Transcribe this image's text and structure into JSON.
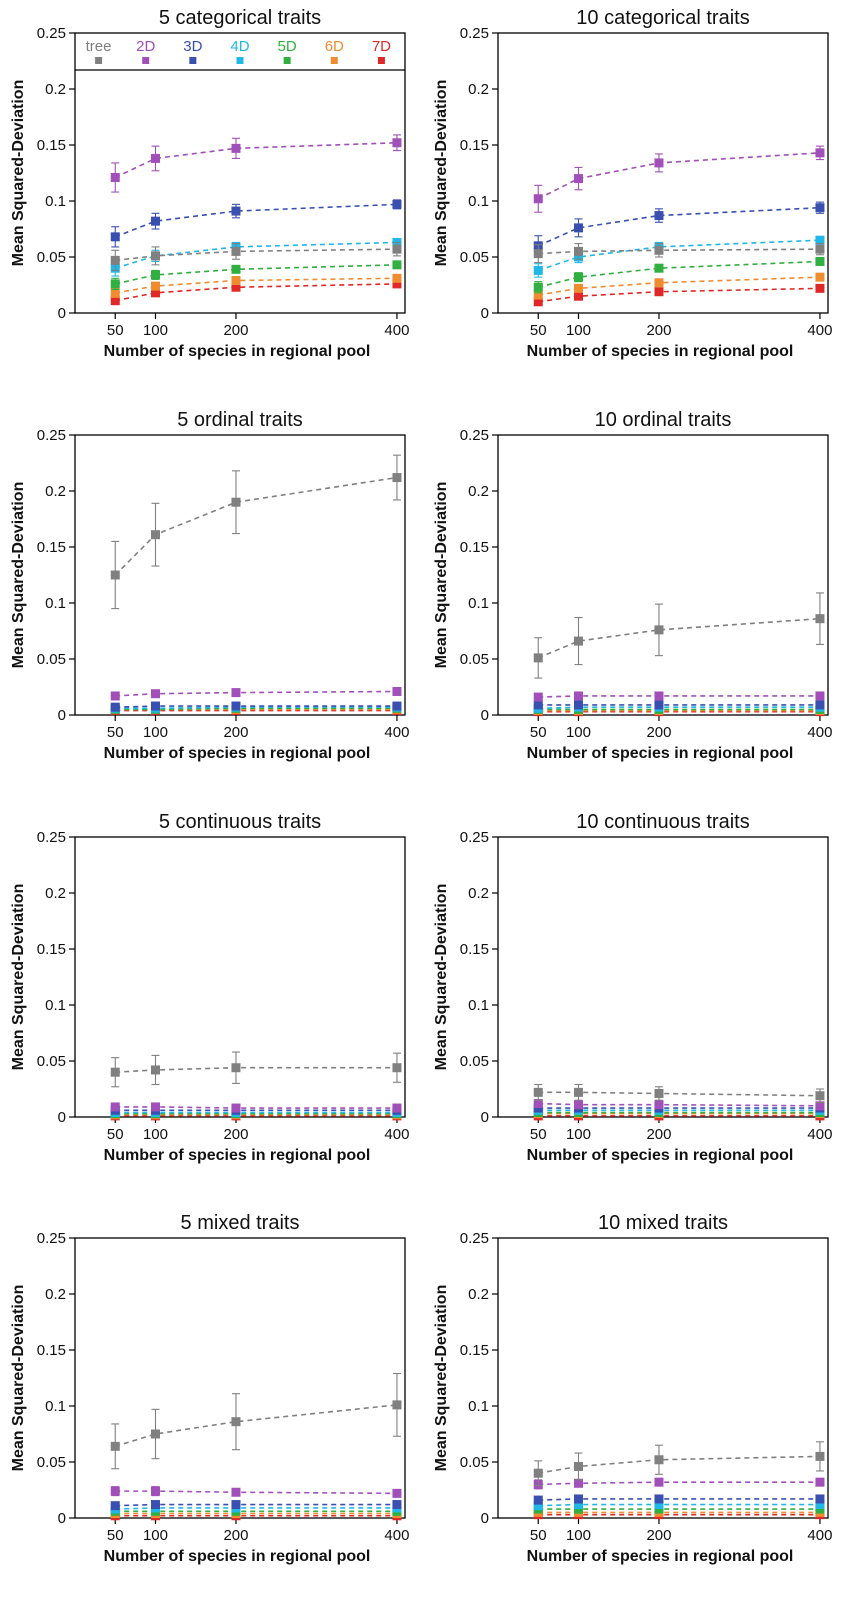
{
  "figure": {
    "legend": {
      "placement": "top, inside first panel",
      "items": [
        {
          "label": "tree",
          "color": "#808080"
        },
        {
          "label": "2D",
          "color": "#a050b8"
        },
        {
          "label": "3D",
          "color": "#3a50b0"
        },
        {
          "label": "4D",
          "color": "#20b8e8"
        },
        {
          "label": "5D",
          "color": "#30b040"
        },
        {
          "label": "6D",
          "color": "#f08c30"
        },
        {
          "label": "7D",
          "color": "#e02828"
        }
      ]
    }
  },
  "chart_data": [
    {
      "type": "line",
      "title": "5 categorical traits",
      "xlabel": "Number of species in regional pool",
      "ylabel": "Mean Squared-Deviation",
      "x": [
        50,
        100,
        200,
        400
      ],
      "x_ticks": [
        "50",
        "100",
        "200",
        "400"
      ],
      "ylim": [
        0,
        0.25
      ],
      "y_ticks": [
        "0",
        "0.05",
        "0.1",
        "0.15",
        "0.2",
        "0.25"
      ],
      "grid": false,
      "series": [
        {
          "name": "tree",
          "values": [
            0.047,
            0.051,
            0.055,
            0.057
          ],
          "errors": [
            0.009,
            0.008,
            0.007,
            0.006
          ]
        },
        {
          "name": "2D",
          "values": [
            0.121,
            0.138,
            0.147,
            0.152
          ],
          "errors": [
            0.013,
            0.011,
            0.009,
            0.007
          ]
        },
        {
          "name": "3D",
          "values": [
            0.068,
            0.082,
            0.091,
            0.097
          ],
          "errors": [
            0.009,
            0.007,
            0.006,
            0.004
          ]
        },
        {
          "name": "4D",
          "values": [
            0.04,
            0.051,
            0.059,
            0.063
          ],
          "errors": [
            0.007,
            0.005,
            0.004,
            0.003
          ]
        },
        {
          "name": "5D",
          "values": [
            0.026,
            0.034,
            0.039,
            0.043
          ],
          "errors": [
            0.005,
            0.004,
            0.003,
            0.002
          ]
        },
        {
          "name": "6D",
          "values": [
            0.018,
            0.024,
            0.029,
            0.031
          ],
          "errors": [
            0.004,
            0.003,
            0.002,
            0.002
          ]
        },
        {
          "name": "7D",
          "values": [
            0.011,
            0.018,
            0.023,
            0.026
          ],
          "errors": [
            0.003,
            0.003,
            0.002,
            0.002
          ]
        }
      ]
    },
    {
      "type": "line",
      "title": "10 categorical traits",
      "xlabel": "Number of species in regional pool",
      "ylabel": "Mean Squared-Deviation",
      "x": [
        50,
        100,
        200,
        400
      ],
      "x_ticks": [
        "50",
        "100",
        "200",
        "400"
      ],
      "ylim": [
        0,
        0.25
      ],
      "y_ticks": [
        "0",
        "0.05",
        "0.1",
        "0.15",
        "0.2",
        "0.25"
      ],
      "grid": false,
      "series": [
        {
          "name": "tree",
          "values": [
            0.053,
            0.055,
            0.056,
            0.057
          ],
          "errors": [
            0.008,
            0.007,
            0.006,
            0.005
          ]
        },
        {
          "name": "2D",
          "values": [
            0.102,
            0.12,
            0.134,
            0.143
          ],
          "errors": [
            0.012,
            0.01,
            0.008,
            0.006
          ]
        },
        {
          "name": "3D",
          "values": [
            0.06,
            0.076,
            0.087,
            0.094
          ],
          "errors": [
            0.009,
            0.008,
            0.006,
            0.005
          ]
        },
        {
          "name": "4D",
          "values": [
            0.038,
            0.05,
            0.059,
            0.065
          ],
          "errors": [
            0.006,
            0.005,
            0.004,
            0.003
          ]
        },
        {
          "name": "5D",
          "values": [
            0.023,
            0.032,
            0.04,
            0.046
          ],
          "errors": [
            0.005,
            0.004,
            0.003,
            0.003
          ]
        },
        {
          "name": "6D",
          "values": [
            0.016,
            0.022,
            0.027,
            0.032
          ],
          "errors": [
            0.003,
            0.003,
            0.002,
            0.002
          ]
        },
        {
          "name": "7D",
          "values": [
            0.01,
            0.015,
            0.019,
            0.022
          ],
          "errors": [
            0.002,
            0.002,
            0.002,
            0.002
          ]
        }
      ]
    },
    {
      "type": "line",
      "title": "5 ordinal traits",
      "xlabel": "Number of species in regional pool",
      "ylabel": "Mean Squared-Deviation",
      "x": [
        50,
        100,
        200,
        400
      ],
      "x_ticks": [
        "50",
        "100",
        "200",
        "400"
      ],
      "ylim": [
        0,
        0.25
      ],
      "y_ticks": [
        "0",
        "0.05",
        "0.1",
        "0.15",
        "0.2",
        "0.25"
      ],
      "grid": false,
      "series": [
        {
          "name": "tree",
          "values": [
            0.125,
            0.161,
            0.19,
            0.212
          ],
          "errors": [
            0.03,
            0.028,
            0.028,
            0.02
          ]
        },
        {
          "name": "2D",
          "values": [
            0.017,
            0.019,
            0.02,
            0.021
          ],
          "errors": [
            0.002,
            0.002,
            0.001,
            0.001
          ]
        },
        {
          "name": "3D",
          "values": [
            0.007,
            0.008,
            0.008,
            0.008
          ],
          "errors": [
            0.001,
            0.001,
            0.001,
            0.001
          ]
        },
        {
          "name": "4D",
          "values": [
            0.006,
            0.006,
            0.007,
            0.007
          ],
          "errors": [
            0.001,
            0.001,
            0.001,
            0.001
          ]
        },
        {
          "name": "5D",
          "values": [
            0.005,
            0.005,
            0.006,
            0.006
          ],
          "errors": [
            0.001,
            0.001,
            0.001,
            0.001
          ]
        },
        {
          "name": "6D",
          "values": [
            0.005,
            0.005,
            0.005,
            0.005
          ],
          "errors": [
            0.001,
            0.001,
            0.001,
            0.001
          ]
        },
        {
          "name": "7D",
          "values": [
            0.004,
            0.004,
            0.004,
            0.004
          ],
          "errors": [
            0.001,
            0.001,
            0.001,
            0.001
          ]
        }
      ]
    },
    {
      "type": "line",
      "title": "10 ordinal traits",
      "xlabel": "Number of species in regional pool",
      "ylabel": "Mean Squared-Deviation",
      "x": [
        50,
        100,
        200,
        400
      ],
      "x_ticks": [
        "50",
        "100",
        "200",
        "400"
      ],
      "ylim": [
        0,
        0.25
      ],
      "y_ticks": [
        "0",
        "0.05",
        "0.1",
        "0.15",
        "0.2",
        "0.25"
      ],
      "grid": false,
      "series": [
        {
          "name": "tree",
          "values": [
            0.051,
            0.066,
            0.076,
            0.086
          ],
          "errors": [
            0.018,
            0.021,
            0.023,
            0.023
          ]
        },
        {
          "name": "2D",
          "values": [
            0.016,
            0.017,
            0.017,
            0.017
          ],
          "errors": [
            0.002,
            0.002,
            0.001,
            0.001
          ]
        },
        {
          "name": "3D",
          "values": [
            0.009,
            0.009,
            0.009,
            0.009
          ],
          "errors": [
            0.001,
            0.001,
            0.001,
            0.001
          ]
        },
        {
          "name": "4D",
          "values": [
            0.006,
            0.007,
            0.007,
            0.007
          ],
          "errors": [
            0.001,
            0.001,
            0.001,
            0.001
          ]
        },
        {
          "name": "5D",
          "values": [
            0.005,
            0.005,
            0.005,
            0.005
          ],
          "errors": [
            0.001,
            0.001,
            0.001,
            0.001
          ]
        },
        {
          "name": "6D",
          "values": [
            0.004,
            0.004,
            0.004,
            0.004
          ],
          "errors": [
            0.001,
            0.001,
            0.001,
            0.001
          ]
        },
        {
          "name": "7D",
          "values": [
            0.003,
            0.003,
            0.003,
            0.003
          ],
          "errors": [
            0.001,
            0.001,
            0.001,
            0.001
          ]
        }
      ]
    },
    {
      "type": "line",
      "title": "5 continuous traits",
      "xlabel": "Number of species in regional pool",
      "ylabel": "Mean Squared-Deviation",
      "x": [
        50,
        100,
        200,
        400
      ],
      "x_ticks": [
        "50",
        "100",
        "200",
        "400"
      ],
      "ylim": [
        0,
        0.25
      ],
      "y_ticks": [
        "0",
        "0.05",
        "0.1",
        "0.15",
        "0.2",
        "0.25"
      ],
      "grid": false,
      "series": [
        {
          "name": "tree",
          "values": [
            0.04,
            0.042,
            0.044,
            0.044
          ],
          "errors": [
            0.013,
            0.013,
            0.014,
            0.013
          ]
        },
        {
          "name": "2D",
          "values": [
            0.009,
            0.009,
            0.008,
            0.008
          ],
          "errors": [
            0.001,
            0.001,
            0.001,
            0.001
          ]
        },
        {
          "name": "3D",
          "values": [
            0.006,
            0.006,
            0.006,
            0.006
          ],
          "errors": [
            0.001,
            0.001,
            0.001,
            0.001
          ]
        },
        {
          "name": "4D",
          "values": [
            0.004,
            0.004,
            0.004,
            0.004
          ],
          "errors": [
            0.001,
            0.001,
            0.001,
            0.001
          ]
        },
        {
          "name": "5D",
          "values": [
            0.003,
            0.003,
            0.003,
            0.003
          ],
          "errors": [
            0.001,
            0.001,
            0.001,
            0.001
          ]
        },
        {
          "name": "6D",
          "values": [
            0.002,
            0.002,
            0.002,
            0.002
          ],
          "errors": [
            0.001,
            0.001,
            0.001,
            0.001
          ]
        },
        {
          "name": "7D",
          "values": [
            0.001,
            0.001,
            0.001,
            0.001
          ],
          "errors": [
            0.001,
            0.001,
            0.001,
            0.001
          ]
        }
      ]
    },
    {
      "type": "line",
      "title": "10 continuous traits",
      "xlabel": "Number of species in regional pool",
      "ylabel": "Mean Squared-Deviation",
      "x": [
        50,
        100,
        200,
        400
      ],
      "x_ticks": [
        "50",
        "100",
        "200",
        "400"
      ],
      "ylim": [
        0,
        0.25
      ],
      "y_ticks": [
        "0",
        "0.05",
        "0.1",
        "0.15",
        "0.2",
        "0.25"
      ],
      "grid": false,
      "series": [
        {
          "name": "tree",
          "values": [
            0.022,
            0.022,
            0.021,
            0.019
          ],
          "errors": [
            0.007,
            0.007,
            0.006,
            0.006
          ]
        },
        {
          "name": "2D",
          "values": [
            0.012,
            0.011,
            0.011,
            0.01
          ],
          "errors": [
            0.002,
            0.002,
            0.002,
            0.002
          ]
        },
        {
          "name": "3D",
          "values": [
            0.008,
            0.008,
            0.008,
            0.008
          ],
          "errors": [
            0.001,
            0.001,
            0.001,
            0.001
          ]
        },
        {
          "name": "4D",
          "values": [
            0.006,
            0.006,
            0.006,
            0.006
          ],
          "errors": [
            0.001,
            0.001,
            0.001,
            0.001
          ]
        },
        {
          "name": "5D",
          "values": [
            0.004,
            0.004,
            0.004,
            0.004
          ],
          "errors": [
            0.001,
            0.001,
            0.001,
            0.001
          ]
        },
        {
          "name": "6D",
          "values": [
            0.003,
            0.003,
            0.003,
            0.003
          ],
          "errors": [
            0.001,
            0.001,
            0.001,
            0.001
          ]
        },
        {
          "name": "7D",
          "values": [
            0.001,
            0.001,
            0.001,
            0.001
          ],
          "errors": [
            0.001,
            0.001,
            0.001,
            0.001
          ]
        }
      ]
    },
    {
      "type": "line",
      "title": "5 mixed traits",
      "xlabel": "Number of species in regional pool",
      "ylabel": "Mean Squared-Deviation",
      "x": [
        50,
        100,
        200,
        400
      ],
      "x_ticks": [
        "50",
        "100",
        "200",
        "400"
      ],
      "ylim": [
        0,
        0.25
      ],
      "y_ticks": [
        "0",
        "0.05",
        "0.1",
        "0.15",
        "0.2",
        "0.25"
      ],
      "grid": false,
      "series": [
        {
          "name": "tree",
          "values": [
            0.064,
            0.075,
            0.086,
            0.101
          ],
          "errors": [
            0.02,
            0.022,
            0.025,
            0.028
          ]
        },
        {
          "name": "2D",
          "values": [
            0.024,
            0.024,
            0.023,
            0.022
          ],
          "errors": [
            0.004,
            0.004,
            0.003,
            0.003
          ]
        },
        {
          "name": "3D",
          "values": [
            0.011,
            0.012,
            0.012,
            0.012
          ],
          "errors": [
            0.002,
            0.002,
            0.002,
            0.002
          ]
        },
        {
          "name": "4D",
          "values": [
            0.008,
            0.009,
            0.009,
            0.009
          ],
          "errors": [
            0.001,
            0.001,
            0.001,
            0.001
          ]
        },
        {
          "name": "5D",
          "values": [
            0.006,
            0.006,
            0.006,
            0.006
          ],
          "errors": [
            0.001,
            0.001,
            0.001,
            0.001
          ]
        },
        {
          "name": "6D",
          "values": [
            0.004,
            0.004,
            0.004,
            0.004
          ],
          "errors": [
            0.001,
            0.001,
            0.001,
            0.001
          ]
        },
        {
          "name": "7D",
          "values": [
            0.002,
            0.002,
            0.002,
            0.002
          ],
          "errors": [
            0.001,
            0.001,
            0.001,
            0.001
          ]
        }
      ]
    },
    {
      "type": "line",
      "title": "10 mixed traits",
      "xlabel": "Number of species in regional pool",
      "ylabel": "Mean Squared-Deviation",
      "x": [
        50,
        100,
        200,
        400
      ],
      "x_ticks": [
        "50",
        "100",
        "200",
        "400"
      ],
      "ylim": [
        0,
        0.25
      ],
      "y_ticks": [
        "0",
        "0.05",
        "0.1",
        "0.15",
        "0.2",
        "0.25"
      ],
      "grid": false,
      "series": [
        {
          "name": "tree",
          "values": [
            0.04,
            0.046,
            0.052,
            0.055
          ],
          "errors": [
            0.011,
            0.012,
            0.013,
            0.013
          ]
        },
        {
          "name": "2D",
          "values": [
            0.03,
            0.031,
            0.032,
            0.032
          ],
          "errors": [
            0.004,
            0.003,
            0.003,
            0.003
          ]
        },
        {
          "name": "3D",
          "values": [
            0.016,
            0.017,
            0.017,
            0.017
          ],
          "errors": [
            0.002,
            0.002,
            0.002,
            0.002
          ]
        },
        {
          "name": "4D",
          "values": [
            0.011,
            0.012,
            0.012,
            0.012
          ],
          "errors": [
            0.002,
            0.002,
            0.002,
            0.002
          ]
        },
        {
          "name": "5D",
          "values": [
            0.008,
            0.008,
            0.008,
            0.008
          ],
          "errors": [
            0.001,
            0.001,
            0.001,
            0.001
          ]
        },
        {
          "name": "6D",
          "values": [
            0.005,
            0.005,
            0.005,
            0.005
          ],
          "errors": [
            0.001,
            0.001,
            0.001,
            0.001
          ]
        },
        {
          "name": "7D",
          "values": [
            0.003,
            0.003,
            0.003,
            0.003
          ],
          "errors": [
            0.001,
            0.001,
            0.001,
            0.001
          ]
        }
      ]
    }
  ]
}
